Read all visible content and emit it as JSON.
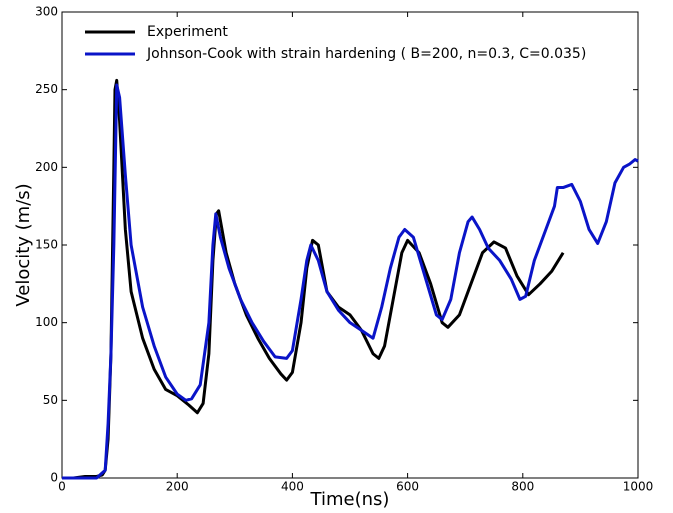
{
  "chart_data": {
    "type": "line",
    "xlabel": "Time(ns)",
    "ylabel": "Velocity (m/s)",
    "xlim": [
      0,
      1000
    ],
    "ylim": [
      0,
      300
    ],
    "xticks": [
      0,
      200,
      400,
      600,
      800,
      1000
    ],
    "yticks": [
      0,
      50,
      100,
      150,
      200,
      250,
      300
    ],
    "grid": false,
    "legend": "upper left",
    "series": [
      {
        "name": "Experiment",
        "color": "#000000",
        "x": [
          0,
          20,
          40,
          60,
          70,
          75,
          80,
          85,
          90,
          92,
          95,
          100,
          110,
          120,
          140,
          160,
          180,
          200,
          220,
          235,
          245,
          255,
          262,
          268,
          272,
          285,
          300,
          320,
          340,
          360,
          380,
          390,
          400,
          415,
          425,
          435,
          445,
          460,
          480,
          500,
          520,
          540,
          550,
          560,
          575,
          590,
          600,
          620,
          640,
          660,
          670,
          690,
          710,
          730,
          750,
          770,
          790,
          810,
          830,
          850,
          870
        ],
        "values": [
          0,
          0,
          1,
          1,
          2,
          5,
          25,
          80,
          200,
          250,
          256,
          230,
          160,
          120,
          90,
          70,
          57,
          53,
          47,
          42,
          48,
          80,
          140,
          170,
          172,
          145,
          125,
          105,
          90,
          77,
          67,
          63,
          68,
          100,
          135,
          153,
          150,
          120,
          110,
          105,
          95,
          80,
          77,
          85,
          115,
          145,
          153,
          145,
          125,
          100,
          97,
          105,
          125,
          145,
          152,
          148,
          130,
          118,
          125,
          133,
          145
        ]
      },
      {
        "name": "Johnson-Cook with strain hardening ( B=200, n=0.3, C=0.035)",
        "color": "#0a14c8",
        "x": [
          0,
          60,
          75,
          80,
          85,
          90,
          95,
          100,
          110,
          120,
          140,
          160,
          180,
          200,
          215,
          225,
          240,
          255,
          262,
          267,
          275,
          290,
          310,
          330,
          350,
          370,
          390,
          400,
          415,
          425,
          432,
          445,
          460,
          480,
          500,
          520,
          540,
          555,
          570,
          585,
          595,
          610,
          630,
          650,
          660,
          675,
          690,
          705,
          712,
          725,
          740,
          760,
          780,
          795,
          805,
          820,
          840,
          855,
          860,
          870,
          885,
          900,
          915,
          930,
          945,
          960,
          975,
          985,
          995,
          1000
        ],
        "values": [
          0,
          0,
          5,
          35,
          80,
          150,
          253,
          245,
          195,
          150,
          110,
          85,
          65,
          54,
          50,
          51,
          60,
          100,
          150,
          170,
          155,
          135,
          115,
          100,
          88,
          78,
          77,
          82,
          115,
          140,
          150,
          140,
          120,
          108,
          100,
          95,
          90,
          110,
          135,
          155,
          160,
          155,
          130,
          105,
          102,
          115,
          145,
          165,
          168,
          160,
          148,
          140,
          128,
          115,
          117,
          140,
          160,
          175,
          187,
          187,
          189,
          178,
          160,
          151,
          165,
          190,
          200,
          202,
          205,
          204
        ]
      }
    ]
  }
}
